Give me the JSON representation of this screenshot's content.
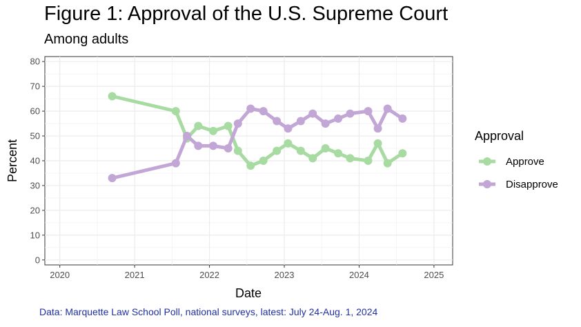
{
  "chart_data": {
    "type": "line",
    "title": "Figure 1: Approval of the U.S. Supreme Court",
    "subtitle": "Among adults",
    "xlabel": "Date",
    "ylabel": "Percent",
    "xlim": [
      2019.8,
      2025.25
    ],
    "ylim": [
      -2,
      82
    ],
    "x_ticks": [
      2020,
      2021,
      2022,
      2023,
      2024,
      2025
    ],
    "x_tick_labels": [
      "2020",
      "2021",
      "2022",
      "2023",
      "2024",
      "2025"
    ],
    "y_ticks": [
      0,
      10,
      20,
      30,
      40,
      50,
      60,
      70,
      80
    ],
    "y_tick_labels": [
      "0",
      "10",
      "20",
      "30",
      "40",
      "50",
      "60",
      "70",
      "80"
    ],
    "grid": true,
    "legend": {
      "title": "Approval",
      "position": "right"
    },
    "x": [
      2020.7,
      2021.55,
      2021.7,
      2021.85,
      2022.05,
      2022.25,
      2022.38,
      2022.55,
      2022.72,
      2022.9,
      2023.05,
      2023.22,
      2023.38,
      2023.55,
      2023.72,
      2023.88,
      2024.12,
      2024.25,
      2024.38,
      2024.58
    ],
    "series": [
      {
        "name": "Approve",
        "color": "#a8dba2",
        "values": [
          66,
          60,
          49,
          54,
          52,
          54,
          44,
          38,
          40,
          44,
          47,
          44,
          41,
          45,
          43,
          41,
          40,
          47,
          39,
          43
        ]
      },
      {
        "name": "Disapprove",
        "color": "#c2a6d6",
        "values": [
          33,
          39,
          50,
          46,
          46,
          45,
          55,
          61,
          60,
          56,
          53,
          56,
          59,
          55,
          57,
          59,
          60,
          53,
          61,
          57
        ]
      }
    ],
    "caption": "Data: Marquette Law School Poll, national surveys, latest: July 24-Aug. 1, 2024"
  }
}
